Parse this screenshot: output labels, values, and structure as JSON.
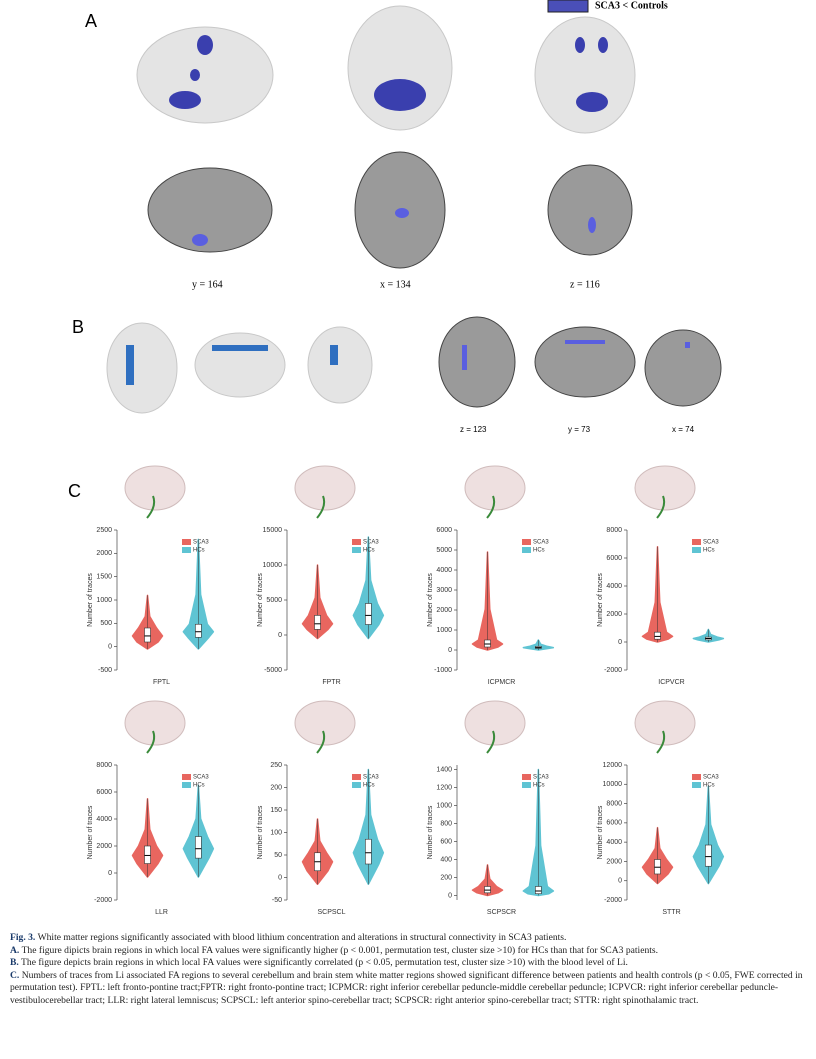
{
  "legend_label": "SCA3 < Controls",
  "panel_labels": [
    "A",
    "B",
    "C"
  ],
  "slice_labels_a": [
    "y = 164",
    "x = 134",
    "z = 116"
  ],
  "slice_labels_b": [
    "z = 123",
    "y = 73",
    "x = 74"
  ],
  "chart_data": [
    {
      "type": "violin",
      "xlabel": "FPTL",
      "ylabel": "Number of traces",
      "ylim": [
        -500,
        2500
      ],
      "yticks": [
        -500,
        0,
        500,
        1000,
        1500,
        2000,
        2500
      ],
      "series": [
        {
          "name": "SCA3",
          "color": "#e8665f",
          "values": [
            -50,
            100,
            230,
            400,
            1100
          ]
        },
        {
          "name": "HCs",
          "color": "#5fc4d3",
          "values": [
            -50,
            200,
            320,
            480,
            2300
          ]
        }
      ]
    },
    {
      "type": "violin",
      "xlabel": "FPTR",
      "ylabel": "Number of traces",
      "ylim": [
        -5000,
        15000
      ],
      "yticks": [
        -5000,
        0,
        5000,
        10000,
        15000
      ],
      "series": [
        {
          "name": "SCA3",
          "color": "#e8665f",
          "values": [
            -500,
            800,
            1600,
            2800,
            10000
          ]
        },
        {
          "name": "HCs",
          "color": "#5fc4d3",
          "values": [
            -500,
            1500,
            2800,
            4500,
            14000
          ]
        }
      ]
    },
    {
      "type": "violin",
      "xlabel": "ICPMCR",
      "ylabel": "Number of traces",
      "ylim": [
        -1000,
        6000
      ],
      "yticks": [
        -1000,
        0,
        1000,
        2000,
        3000,
        4000,
        5000,
        6000
      ],
      "series": [
        {
          "name": "SCA3",
          "color": "#e8665f",
          "values": [
            0,
            150,
            300,
            500,
            4900
          ]
        },
        {
          "name": "HCs",
          "color": "#5fc4d3",
          "values": [
            0,
            80,
            120,
            180,
            500
          ]
        }
      ]
    },
    {
      "type": "violin",
      "xlabel": "ICPVCR",
      "ylabel": "Number of traces",
      "ylim": [
        -2000,
        8000
      ],
      "yticks": [
        -2000,
        0,
        2000,
        4000,
        6000,
        8000
      ],
      "series": [
        {
          "name": "SCA3",
          "color": "#e8665f",
          "values": [
            0,
            200,
            400,
            700,
            6800
          ]
        },
        {
          "name": "HCs",
          "color": "#5fc4d3",
          "values": [
            0,
            150,
            250,
            350,
            900
          ]
        }
      ]
    },
    {
      "type": "violin",
      "xlabel": "LLR",
      "ylabel": "Number of traces",
      "ylim": [
        -2000,
        8000
      ],
      "yticks": [
        -2000,
        0,
        2000,
        4000,
        6000,
        8000
      ],
      "series": [
        {
          "name": "SCA3",
          "color": "#e8665f",
          "values": [
            -300,
            700,
            1300,
            2000,
            5500
          ]
        },
        {
          "name": "HCs",
          "color": "#5fc4d3",
          "values": [
            -300,
            1100,
            1800,
            2700,
            6500
          ]
        }
      ]
    },
    {
      "type": "violin",
      "xlabel": "SCPSCL",
      "ylabel": "Number of traces",
      "ylim": [
        -50,
        250
      ],
      "yticks": [
        -50,
        0,
        50,
        100,
        150,
        200,
        250
      ],
      "series": [
        {
          "name": "SCA3",
          "color": "#e8665f",
          "values": [
            -15,
            15,
            35,
            55,
            130
          ]
        },
        {
          "name": "HCs",
          "color": "#5fc4d3",
          "values": [
            -15,
            30,
            55,
            85,
            240
          ]
        }
      ]
    },
    {
      "type": "violin",
      "xlabel": "SCPSCR",
      "ylabel": "Number of traces",
      "ylim": [
        -50,
        1450
      ],
      "yticks": [
        0,
        200,
        400,
        600,
        800,
        1000,
        1200,
        1400
      ],
      "series": [
        {
          "name": "SCA3",
          "color": "#e8665f",
          "values": [
            0,
            30,
            60,
            100,
            340
          ]
        },
        {
          "name": "HCs",
          "color": "#5fc4d3",
          "values": [
            0,
            20,
            50,
            100,
            1400
          ]
        }
      ]
    },
    {
      "type": "violin",
      "xlabel": "STTR",
      "ylabel": "Number of traces",
      "ylim": [
        -2000,
        12000
      ],
      "yticks": [
        -2000,
        0,
        2000,
        4000,
        6000,
        8000,
        10000,
        12000
      ],
      "series": [
        {
          "name": "SCA3",
          "color": "#e8665f",
          "values": [
            -300,
            700,
            1400,
            2200,
            5500
          ]
        },
        {
          "name": "HCs",
          "color": "#5fc4d3",
          "values": [
            -300,
            1500,
            2500,
            3700,
            9800
          ]
        }
      ]
    }
  ],
  "caption": {
    "label": "Fig. 3.",
    "text": "White matter regions significantly associated with blood lithium concentration and alterations in structural connectivity in SCA3 patients.",
    "items": [
      {
        "label": "A.",
        "text": "The figure dipicts brain regions in which local FA values were significantly higher (p < 0.001, permutation test, cluster size >10) for HCs than that for SCA3 patients."
      },
      {
        "label": "B.",
        "text": "The figure depicts brain regions in which local FA values were significantly correlated (p < 0.05, permutation test, cluster size >10) with the blood level of Li."
      },
      {
        "label": "C.",
        "text": "Numbers of traces from Li associated FA regions to several cerebellum and brain stem white matter regions showed significant difference between patients and health controls (p < 0.05, FWE corrected in permutation test). FPTL: left fronto-pontine tract;FPTR: right fronto-pontine tract; ICPMCR: right inferior cerebellar peduncle-middle cerebellar peduncle; ICPVCR: right inferior cerebellar peduncle-vestibulocerebellar tract; LLR: right lateral lemniscus; SCPSCL: left anterior spino-cerebellar tract; SCPSCR: right anterior spino-cerebellar tract; STTR: right spinothalamic tract."
      }
    ]
  }
}
